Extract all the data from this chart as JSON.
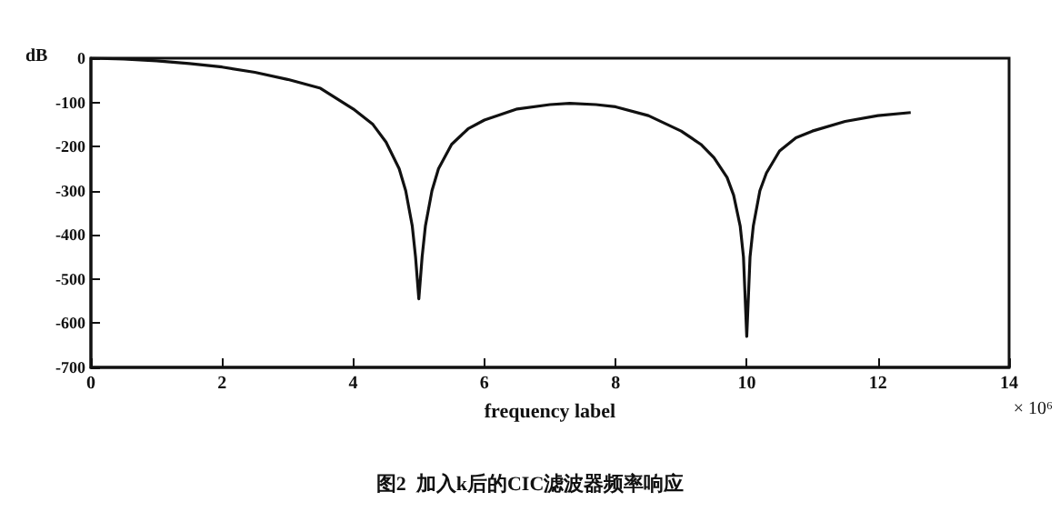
{
  "chart_data": {
    "type": "line",
    "title": "图2  加入k后的CIC滤波器频率响应",
    "xlabel": "frequency label",
    "ylabel": "dB",
    "annotations": [
      "× 10⁶"
    ],
    "x": [
      0,
      0.5,
      1,
      1.5,
      2,
      2.5,
      3,
      3.5,
      4,
      4.3,
      4.5,
      4.7,
      4.8,
      4.9,
      4.95,
      5,
      5.05,
      5.1,
      5.2,
      5.3,
      5.5,
      5.75,
      6,
      6.5,
      7,
      7.3,
      7.7,
      8,
      8.5,
      9,
      9.3,
      9.5,
      9.7,
      9.8,
      9.9,
      9.95,
      10,
      10.05,
      10.1,
      10.2,
      10.3,
      10.5,
      10.75,
      11,
      11.5,
      12,
      12.5
    ],
    "series": [
      {
        "color": "#111111",
        "values": [
          0,
          -2,
          -6,
          -12,
          -20,
          -32,
          -48,
          -68,
          -115,
          -150,
          -190,
          -250,
          -300,
          -380,
          -450,
          -545,
          -450,
          -380,
          -300,
          -250,
          -195,
          -160,
          -140,
          -115,
          -105,
          -102,
          -105,
          -110,
          -130,
          -165,
          -195,
          -225,
          -270,
          -310,
          -380,
          -450,
          -630,
          -450,
          -380,
          -300,
          -260,
          -210,
          -180,
          -165,
          -143,
          -130,
          -123
        ]
      }
    ],
    "xlim": [
      0,
      14
    ],
    "xticks": [
      0,
      2,
      4,
      6,
      8,
      10,
      12,
      14
    ],
    "ylim": [
      -700,
      0
    ],
    "yticks": [
      -700,
      -600,
      -500,
      -400,
      -300,
      -200,
      -100,
      0
    ],
    "grid": false,
    "marker": "none",
    "line_style": "solid"
  }
}
